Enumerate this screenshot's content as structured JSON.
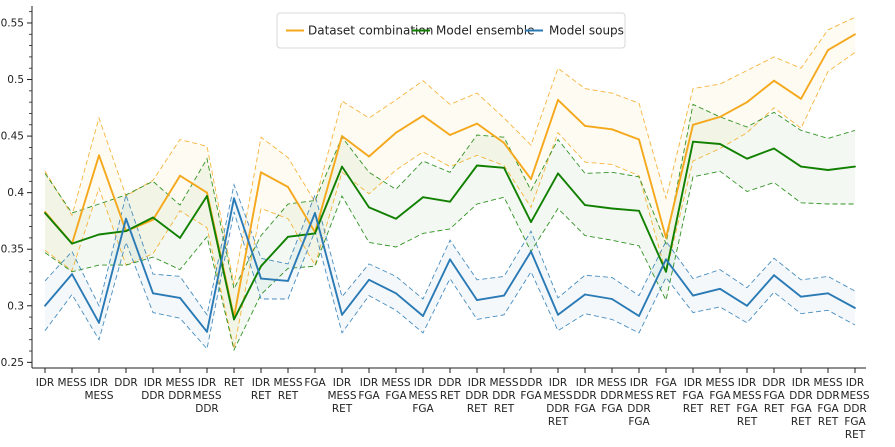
{
  "chart_data": {
    "type": "line",
    "title": "",
    "xlabel": "",
    "ylabel": "",
    "ylim": [
      0.245,
      0.565
    ],
    "yticks": [
      0.25,
      0.3,
      0.35,
      0.4,
      0.45,
      0.5,
      0.55
    ],
    "ytick_labels": [
      "0.25",
      "0.3",
      "0.35",
      "0.4",
      "0.45",
      "0.5",
      "0.55"
    ],
    "grid": false,
    "legend": "top-center",
    "categories": [
      [
        "IDR"
      ],
      [
        "MESS"
      ],
      [
        "IDR",
        "MESS"
      ],
      [
        "DDR"
      ],
      [
        "IDR",
        "DDR"
      ],
      [
        "MESS",
        "DDR"
      ],
      [
        "IDR",
        "MESS",
        "DDR"
      ],
      [
        "RET"
      ],
      [
        "IDR",
        "RET"
      ],
      [
        "MESS",
        "RET"
      ],
      [
        "FGA"
      ],
      [
        "IDR",
        "MESS",
        "RET"
      ],
      [
        "IDR",
        "FGA"
      ],
      [
        "MESS",
        "FGA"
      ],
      [
        "IDR",
        "MESS",
        "FGA"
      ],
      [
        "DDR",
        "RET"
      ],
      [
        "IDR",
        "DDR",
        "RET"
      ],
      [
        "MESS",
        "DDR",
        "RET"
      ],
      [
        "DDR",
        "FGA"
      ],
      [
        "IDR",
        "MESS",
        "DDR",
        "RET"
      ],
      [
        "IDR",
        "DDR",
        "FGA"
      ],
      [
        "MESS",
        "DDR",
        "FGA"
      ],
      [
        "IDR",
        "MESS",
        "DDR",
        "FGA"
      ],
      [
        "FGA",
        "RET"
      ],
      [
        "IDR",
        "FGA",
        "RET"
      ],
      [
        "MESS",
        "FGA",
        "RET"
      ],
      [
        "IDR",
        "MESS",
        "FGA",
        "RET"
      ],
      [
        "DDR",
        "FGA",
        "RET"
      ],
      [
        "IDR",
        "DDR",
        "FGA",
        "RET"
      ],
      [
        "MESS",
        "DDR",
        "FGA",
        "RET"
      ],
      [
        "IDR",
        "MESS",
        "DDR",
        "FGA",
        "RET"
      ]
    ],
    "series": [
      {
        "name": "Dataset combination",
        "color": "#f5a81c",
        "values": [
          0.383,
          0.355,
          0.433,
          0.366,
          0.376,
          0.415,
          0.4,
          0.29,
          0.418,
          0.405,
          0.365,
          0.45,
          0.432,
          0.453,
          0.468,
          0.451,
          0.461,
          0.444,
          0.412,
          0.482,
          0.459,
          0.456,
          0.447,
          0.36,
          0.46,
          0.467,
          0.48,
          0.499,
          0.483,
          0.526,
          0.54
        ],
        "upper": [
          0.419,
          0.38,
          0.466,
          0.397,
          0.411,
          0.447,
          0.441,
          0.319,
          0.449,
          0.431,
          0.392,
          0.481,
          0.466,
          0.482,
          0.499,
          0.478,
          0.488,
          0.466,
          0.442,
          0.51,
          0.492,
          0.488,
          0.479,
          0.395,
          0.492,
          0.496,
          0.508,
          0.52,
          0.51,
          0.544,
          0.555
        ],
        "lower": [
          0.349,
          0.331,
          0.404,
          0.336,
          0.346,
          0.384,
          0.369,
          0.262,
          0.386,
          0.377,
          0.336,
          0.418,
          0.399,
          0.42,
          0.436,
          0.423,
          0.433,
          0.424,
          0.387,
          0.453,
          0.427,
          0.425,
          0.415,
          0.329,
          0.428,
          0.439,
          0.453,
          0.475,
          0.457,
          0.507,
          0.524
        ]
      },
      {
        "name": "Model ensemble",
        "color": "#118000",
        "values": [
          0.382,
          0.355,
          0.363,
          0.366,
          0.378,
          0.36,
          0.397,
          0.288,
          0.335,
          0.361,
          0.364,
          0.423,
          0.387,
          0.377,
          0.396,
          0.392,
          0.424,
          0.422,
          0.374,
          0.417,
          0.389,
          0.386,
          0.384,
          0.33,
          0.445,
          0.443,
          0.43,
          0.439,
          0.423,
          0.42,
          0.423
        ],
        "upper": [
          0.417,
          0.382,
          0.39,
          0.398,
          0.41,
          0.389,
          0.43,
          0.315,
          0.362,
          0.39,
          0.393,
          0.449,
          0.418,
          0.403,
          0.428,
          0.418,
          0.451,
          0.449,
          0.402,
          0.447,
          0.417,
          0.418,
          0.414,
          0.355,
          0.478,
          0.467,
          0.458,
          0.471,
          0.455,
          0.448,
          0.455
        ],
        "lower": [
          0.347,
          0.33,
          0.336,
          0.336,
          0.343,
          0.332,
          0.361,
          0.261,
          0.31,
          0.333,
          0.335,
          0.397,
          0.356,
          0.352,
          0.364,
          0.368,
          0.39,
          0.396,
          0.348,
          0.386,
          0.362,
          0.358,
          0.353,
          0.305,
          0.414,
          0.419,
          0.401,
          0.409,
          0.391,
          0.39,
          0.39
        ]
      },
      {
        "name": "Model soups",
        "color": "#2a7ab5",
        "values": [
          0.3,
          0.328,
          0.285,
          0.377,
          0.311,
          0.307,
          0.277,
          0.395,
          0.324,
          0.322,
          0.382,
          0.292,
          0.323,
          0.311,
          0.291,
          0.341,
          0.305,
          0.309,
          0.348,
          0.292,
          0.31,
          0.306,
          0.291,
          0.341,
          0.309,
          0.315,
          0.3,
          0.327,
          0.308,
          0.311,
          0.298
        ],
        "upper": [
          0.322,
          0.348,
          0.3,
          0.398,
          0.328,
          0.326,
          0.292,
          0.407,
          0.342,
          0.337,
          0.398,
          0.308,
          0.337,
          0.326,
          0.306,
          0.358,
          0.323,
          0.326,
          0.366,
          0.307,
          0.327,
          0.325,
          0.309,
          0.357,
          0.324,
          0.332,
          0.316,
          0.342,
          0.323,
          0.326,
          0.313
        ],
        "lower": [
          0.278,
          0.31,
          0.27,
          0.356,
          0.294,
          0.289,
          0.262,
          0.383,
          0.306,
          0.306,
          0.366,
          0.276,
          0.309,
          0.296,
          0.276,
          0.324,
          0.288,
          0.292,
          0.33,
          0.278,
          0.293,
          0.288,
          0.276,
          0.325,
          0.294,
          0.299,
          0.285,
          0.312,
          0.293,
          0.296,
          0.283
        ]
      }
    ]
  }
}
